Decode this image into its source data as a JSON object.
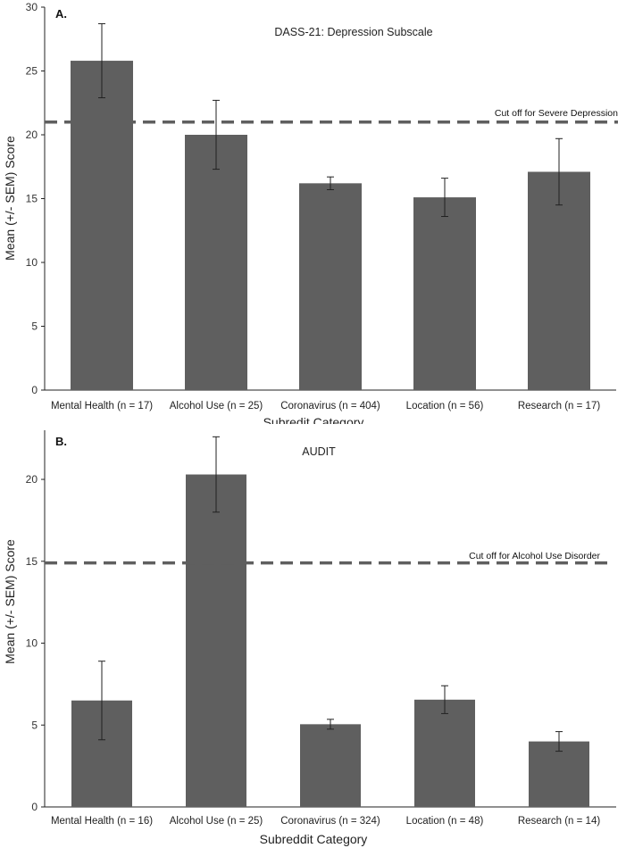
{
  "chart_data": [
    {
      "type": "bar",
      "panel_label": "A.",
      "title": "DASS-21: Depression Subscale",
      "xlabel": "Subredit Category",
      "ylabel": "Mean (+/- SEM) Score",
      "ylim": [
        0,
        30
      ],
      "yticks": [
        0,
        5,
        10,
        15,
        20,
        25,
        30
      ],
      "categories": [
        "Mental Health (n = 17)",
        "Alcohol Use (n = 25)",
        "Coronavirus (n = 404)",
        "Location (n = 56)",
        "Research (n = 17)"
      ],
      "values": [
        25.8,
        20.0,
        16.2,
        15.1,
        17.1
      ],
      "errors": [
        2.9,
        2.7,
        0.5,
        1.5,
        2.6
      ],
      "bar_color": "#5f5f5f",
      "cutoff": {
        "value": 21,
        "label": "Cut off for Severe Depression"
      }
    },
    {
      "type": "bar",
      "panel_label": "B.",
      "title": "AUDIT",
      "xlabel": "Subreddit Category",
      "ylabel": "Mean (+/- SEM) Score",
      "ylim": [
        0,
        23
      ],
      "yticks": [
        0,
        5,
        10,
        15,
        20
      ],
      "categories": [
        "Mental Health (n = 16)",
        "Alcohol Use (n = 25)",
        "Coronavirus (n = 324)",
        "Location (n = 48)",
        "Research (n = 14)"
      ],
      "values": [
        6.5,
        20.3,
        5.05,
        6.55,
        4.0
      ],
      "errors": [
        2.4,
        2.3,
        0.3,
        0.85,
        0.6
      ],
      "bar_color": "#5f5f5f",
      "cutoff": {
        "value": 14.9,
        "label": "Cut off for Alcohol Use Disorder"
      }
    }
  ]
}
